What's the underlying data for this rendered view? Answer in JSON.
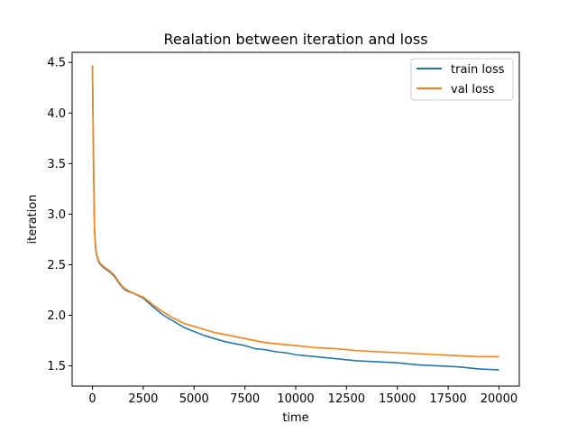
{
  "chart_data": {
    "type": "line",
    "title": "Realation between iteration and loss",
    "xlabel": "time",
    "ylabel": "iteration",
    "xlim": [
      -1000,
      21000
    ],
    "ylim": [
      1.3,
      4.6
    ],
    "xticks": [
      0,
      2500,
      5000,
      7500,
      10000,
      12500,
      15000,
      17500,
      20000
    ],
    "xtick_labels": [
      "0",
      "2500",
      "5000",
      "7500",
      "10000",
      "12500",
      "15000",
      "17500",
      "20000"
    ],
    "yticks": [
      1.5,
      2.0,
      2.5,
      3.0,
      3.5,
      4.0,
      4.5
    ],
    "ytick_labels": [
      "1.5",
      "2.0",
      "2.5",
      "3.0",
      "3.5",
      "4.0",
      "4.5"
    ],
    "grid": false,
    "legend": "upper right",
    "series": [
      {
        "name": "train loss",
        "color": "#1f77b4",
        "x": [
          0,
          50,
          100,
          150,
          200,
          300,
          400,
          500,
          700,
          900,
          1100,
          1300,
          1500,
          1700,
          2000,
          2500,
          3000,
          3500,
          4000,
          4500,
          5000,
          5500,
          6000,
          6500,
          7000,
          7500,
          8000,
          8500,
          9000,
          9500,
          10000,
          11000,
          12000,
          13000,
          14000,
          15000,
          16000,
          17000,
          18000,
          19000,
          20000
        ],
        "y": [
          4.47,
          3.6,
          2.85,
          2.68,
          2.6,
          2.53,
          2.5,
          2.48,
          2.45,
          2.42,
          2.38,
          2.32,
          2.27,
          2.24,
          2.22,
          2.17,
          2.08,
          2.0,
          1.94,
          1.88,
          1.84,
          1.8,
          1.77,
          1.74,
          1.72,
          1.7,
          1.67,
          1.66,
          1.64,
          1.63,
          1.61,
          1.59,
          1.57,
          1.55,
          1.54,
          1.53,
          1.51,
          1.5,
          1.49,
          1.47,
          1.46
        ]
      },
      {
        "name": "val loss",
        "color": "#ff7f0e",
        "x": [
          0,
          50,
          100,
          150,
          200,
          300,
          400,
          500,
          700,
          900,
          1100,
          1300,
          1500,
          1700,
          2000,
          2500,
          3000,
          3500,
          4000,
          4500,
          5000,
          5500,
          6000,
          6500,
          7000,
          7500,
          8000,
          8500,
          9000,
          9500,
          10000,
          11000,
          12000,
          13000,
          14000,
          15000,
          16000,
          17000,
          18000,
          19000,
          20000
        ],
        "y": [
          4.47,
          3.6,
          2.86,
          2.69,
          2.61,
          2.54,
          2.51,
          2.49,
          2.46,
          2.43,
          2.39,
          2.33,
          2.28,
          2.25,
          2.22,
          2.18,
          2.1,
          2.03,
          1.97,
          1.92,
          1.89,
          1.86,
          1.83,
          1.81,
          1.79,
          1.77,
          1.75,
          1.73,
          1.72,
          1.71,
          1.7,
          1.68,
          1.67,
          1.65,
          1.64,
          1.63,
          1.62,
          1.61,
          1.6,
          1.59,
          1.59
        ]
      }
    ]
  }
}
